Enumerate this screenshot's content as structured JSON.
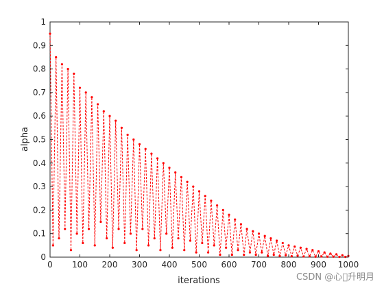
{
  "chart_data": {
    "type": "line",
    "xlabel": "iterations",
    "ylabel": "alpha",
    "xlim": [
      0,
      1000
    ],
    "ylim": [
      0,
      1
    ],
    "xticks": [
      0,
      100,
      200,
      300,
      400,
      500,
      600,
      700,
      800,
      900,
      1000
    ],
    "yticks": [
      0,
      0.1,
      0.2,
      0.3,
      0.4,
      0.5,
      0.6,
      0.7,
      0.8,
      0.9,
      1
    ],
    "ytick_labels": [
      "0",
      "0.1",
      "0.2",
      "0.3",
      "0.4",
      "0.5",
      "0.6",
      "0.7",
      "0.8",
      "0.9",
      "1"
    ],
    "grid": false,
    "line_style": "dashed with point markers",
    "series": [
      {
        "color": "#ff0000",
        "x": [
          0,
          10,
          20,
          30,
          40,
          50,
          60,
          70,
          80,
          90,
          100,
          110,
          120,
          130,
          140,
          150,
          160,
          170,
          180,
          190,
          200,
          210,
          220,
          230,
          240,
          250,
          260,
          270,
          280,
          290,
          300,
          310,
          320,
          330,
          340,
          350,
          360,
          370,
          380,
          390,
          400,
          410,
          420,
          430,
          440,
          450,
          460,
          470,
          480,
          490,
          500,
          510,
          520,
          530,
          540,
          550,
          560,
          570,
          580,
          590,
          600,
          610,
          620,
          630,
          640,
          650,
          660,
          670,
          680,
          690,
          700,
          710,
          720,
          730,
          740,
          750,
          760,
          770,
          780,
          790,
          800,
          810,
          820,
          830,
          840,
          850,
          860,
          870,
          880,
          890,
          900,
          910,
          920,
          930,
          940,
          950,
          960,
          970,
          980,
          990,
          1000
        ],
        "y": [
          0.95,
          0.05,
          0.85,
          0.08,
          0.82,
          0.12,
          0.8,
          0.03,
          0.78,
          0.1,
          0.72,
          0.06,
          0.7,
          0.12,
          0.68,
          0.05,
          0.65,
          0.15,
          0.62,
          0.08,
          0.6,
          0.04,
          0.58,
          0.12,
          0.55,
          0.06,
          0.52,
          0.1,
          0.5,
          0.03,
          0.48,
          0.12,
          0.46,
          0.05,
          0.44,
          0.08,
          0.42,
          0.03,
          0.4,
          0.1,
          0.38,
          0.04,
          0.36,
          0.08,
          0.34,
          0.03,
          0.32,
          0.07,
          0.3,
          0.02,
          0.28,
          0.06,
          0.26,
          0.02,
          0.24,
          0.05,
          0.22,
          0.01,
          0.2,
          0.04,
          0.18,
          0.01,
          0.16,
          0.03,
          0.14,
          0.01,
          0.12,
          0.02,
          0.11,
          0.01,
          0.1,
          0.02,
          0.09,
          0.005,
          0.08,
          0.01,
          0.07,
          0.005,
          0.06,
          0.008,
          0.05,
          0.004,
          0.045,
          0.006,
          0.04,
          0.003,
          0.035,
          0.004,
          0.03,
          0.002,
          0.025,
          0.003,
          0.02,
          0.002,
          0.015,
          0.002,
          0.012,
          0.001,
          0.008,
          0.001,
          0.005
        ]
      }
    ]
  },
  "watermark": "CSDN @心\u0000升明月"
}
